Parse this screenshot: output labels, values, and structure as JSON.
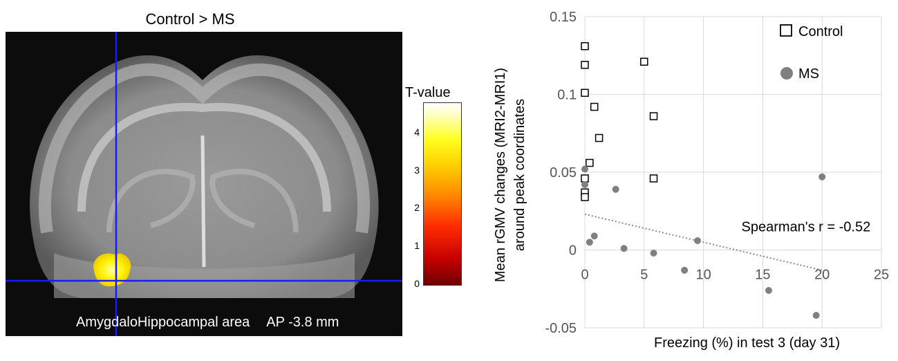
{
  "brain_panel": {
    "title": "Control > MS",
    "caption_region": "AmygdaloHippocampal area",
    "caption_ap": "AP -3.8 mm",
    "colorbar": {
      "title": "T-value",
      "ticks": [
        "0",
        "1",
        "2",
        "3",
        "4"
      ],
      "min": 0,
      "max": 4.8
    }
  },
  "chart_data": {
    "type": "scatter",
    "xlabel": "Freezing (%) in test 3 (day 31)",
    "ylabel_line1": "Mean rGMV changes (MRI2-MRI1)",
    "ylabel_line2": "around peak coordinates",
    "xlim": [
      0,
      25
    ],
    "ylim": [
      -0.05,
      0.15
    ],
    "x_ticks": [
      0,
      5,
      10,
      15,
      20,
      25
    ],
    "y_ticks": [
      -0.05,
      0,
      0.05,
      0.1,
      0.15
    ],
    "x_tick_labels": [
      "0",
      "5",
      "10",
      "15",
      "20",
      "25"
    ],
    "y_tick_labels": [
      "-0.05",
      "0",
      "0.05",
      "0.1",
      "0.15"
    ],
    "grid": true,
    "legend_placement": "top-right",
    "series": [
      {
        "name": "Control",
        "marker": "open-square",
        "color": "#000000",
        "x": [
          0,
          0,
          0,
          0,
          0,
          0,
          0.4,
          0.8,
          1.2,
          5.0,
          5.8,
          5.8
        ],
        "y": [
          0.131,
          0.119,
          0.101,
          0.046,
          0.037,
          0.034,
          0.056,
          0.092,
          0.072,
          0.121,
          0.086,
          0.046
        ]
      },
      {
        "name": "MS",
        "marker": "filled-circle",
        "color": "#808080",
        "x": [
          0,
          0,
          0.4,
          0.8,
          2.6,
          3.3,
          5.8,
          8.4,
          9.5,
          15.5,
          19.5,
          20.0
        ],
        "y": [
          0.052,
          0.042,
          0.005,
          0.009,
          0.039,
          0.001,
          -0.002,
          -0.013,
          0.006,
          -0.026,
          -0.042,
          0.047
        ]
      }
    ],
    "trendline": {
      "style": "dotted",
      "color": "#888888",
      "x": [
        0,
        20
      ],
      "y": [
        0.023,
        -0.013
      ]
    },
    "annotation": "Spearman's r = -0.52",
    "annotation_at": [
      13.2,
      0.012
    ]
  }
}
